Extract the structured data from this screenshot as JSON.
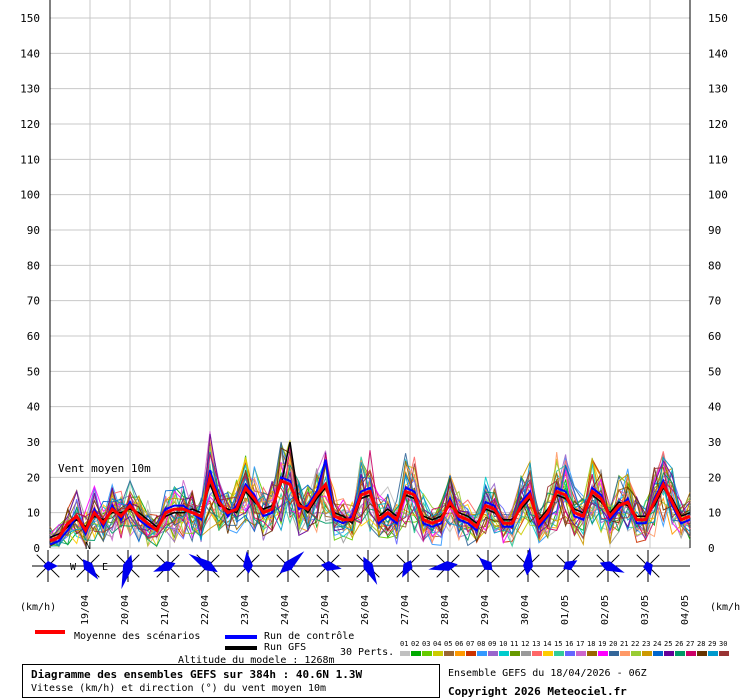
{
  "chart_data": {
    "type": "line",
    "ylim": [
      0,
      150
    ],
    "y_ticks": [
      0,
      10,
      20,
      30,
      40,
      50,
      60,
      70,
      80,
      90,
      100,
      110,
      120,
      130,
      140,
      150
    ],
    "x_date_labels": [
      "19/04",
      "20/04",
      "21/04",
      "22/04",
      "23/04",
      "24/04",
      "25/04",
      "26/04",
      "27/04",
      "28/04",
      "29/04",
      "30/04",
      "01/05",
      "02/05",
      "03/05",
      "04/05"
    ],
    "y_unit_left": "(km/h)",
    "y_unit_right": "(km/h)",
    "annotation": "Vent moyen 10m",
    "grid": true,
    "series": [
      {
        "name": "Moyenne des scénarios",
        "color": "#ff0000",
        "values": [
          2,
          3,
          7,
          9,
          5,
          10,
          7,
          11,
          9,
          12,
          9,
          7,
          5,
          10,
          11,
          11,
          10,
          9,
          20,
          13,
          10,
          11,
          17,
          14,
          10,
          11,
          19,
          18,
          12,
          11,
          15,
          18,
          9,
          8,
          8,
          15,
          16,
          8,
          10,
          8,
          16,
          15,
          8,
          7,
          8,
          13,
          9,
          8,
          6,
          12,
          11,
          7,
          7,
          12,
          15,
          7,
          10,
          16,
          15,
          10,
          9,
          16,
          14,
          9,
          12,
          13,
          8,
          8,
          13,
          18,
          13,
          8,
          9
        ]
      },
      {
        "name": "Run de contrôle",
        "color": "#0000ff",
        "values": [
          1,
          2,
          5,
          9,
          4,
          11,
          6,
          12,
          8,
          13,
          8,
          6,
          5,
          11,
          12,
          12,
          10,
          8,
          22,
          14,
          9,
          12,
          18,
          15,
          9,
          10,
          20,
          19,
          11,
          12,
          16,
          25,
          8,
          7,
          9,
          16,
          17,
          7,
          9,
          7,
          17,
          16,
          7,
          6,
          7,
          14,
          8,
          7,
          5,
          13,
          12,
          6,
          6,
          13,
          16,
          6,
          9,
          17,
          16,
          9,
          8,
          17,
          15,
          8,
          11,
          14,
          7,
          7,
          14,
          19,
          12,
          7,
          8
        ]
      },
      {
        "name": "Run GFS",
        "color": "#000000",
        "values": [
          3,
          4,
          6,
          8,
          6,
          9,
          8,
          10,
          10,
          11,
          10,
          8,
          6,
          9,
          10,
          10,
          11,
          10,
          18,
          12,
          11,
          10,
          16,
          13,
          11,
          12,
          18,
          30,
          13,
          10,
          14,
          17,
          10,
          9,
          7,
          14,
          15,
          9,
          11,
          9,
          15,
          14,
          9,
          8,
          9,
          12,
          10,
          9,
          7,
          11,
          10,
          8,
          8,
          11,
          14,
          8,
          11,
          15,
          14,
          11,
          10,
          15,
          13,
          10,
          13,
          12,
          9,
          9,
          12,
          17,
          14,
          9,
          10
        ]
      }
    ]
  },
  "legend": {
    "mean_label": "Moyenne des scénarios",
    "control_label": "Run de contrôle",
    "gfs_label": "Run GFS",
    "perts_label": "30 Perts.",
    "pert_numbers": [
      "01",
      "02",
      "03",
      "04",
      "05",
      "06",
      "07",
      "08",
      "09",
      "10",
      "11",
      "12",
      "13",
      "14",
      "15",
      "16",
      "17",
      "18",
      "19",
      "20",
      "21",
      "22",
      "23",
      "24",
      "25",
      "26",
      "27",
      "28",
      "29",
      "30"
    ],
    "pert_colors": [
      "#c0c0c0",
      "#00aa00",
      "#66cc00",
      "#cccc00",
      "#996633",
      "#ff9900",
      "#cc3300",
      "#3399ff",
      "#9966cc",
      "#00cccc",
      "#669900",
      "#999999",
      "#ff6666",
      "#ffcc00",
      "#33cc99",
      "#6666ff",
      "#cc66cc",
      "#996600",
      "#ff00ff",
      "#336699",
      "#ff9966",
      "#99cc33",
      "#cc9900",
      "#0066cc",
      "#660099",
      "#009966",
      "#cc0066",
      "#663300",
      "#0099cc",
      "#993333"
    ]
  },
  "altitude_label": "Altitude du modele : 1268m",
  "footer": {
    "title": "Diagramme des ensembles GEFS sur 384h : 40.6N 1.3W",
    "subtitle": "Vitesse (km/h) et direction (°) du vent moyen 10m",
    "run_info": "Ensemble GEFS du 18/04/2026 - 06Z",
    "copyright": "Copyright 2026 Meteociel.fr"
  },
  "compass": {
    "n": "N",
    "w": "W",
    "e": "E"
  }
}
